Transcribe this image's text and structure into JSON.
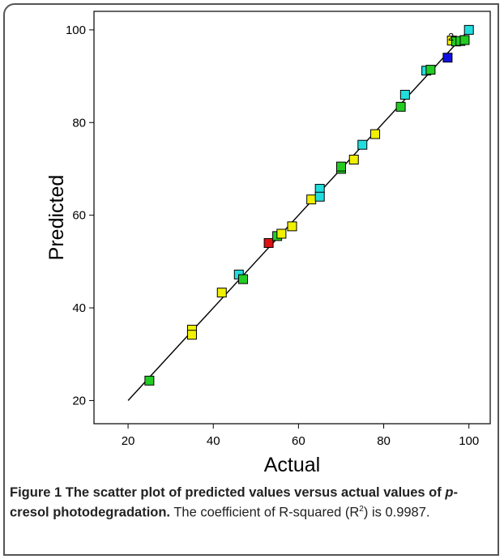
{
  "chart_data": {
    "type": "scatter",
    "xlabel": "Actual",
    "ylabel": "Predicted",
    "xlim": [
      12,
      105
    ],
    "ylim": [
      15,
      104
    ],
    "xticks": [
      20,
      40,
      60,
      80,
      100
    ],
    "yticks": [
      20,
      40,
      60,
      80,
      100
    ],
    "grid": false,
    "fit_line": {
      "x": [
        20,
        100
      ],
      "y": [
        20,
        100
      ]
    },
    "points": [
      {
        "x": 25,
        "y": 24.3,
        "color": "#22cc22"
      },
      {
        "x": 35,
        "y": 35.3,
        "color": "#f0f000"
      },
      {
        "x": 35,
        "y": 34.2,
        "color": "#f0f000"
      },
      {
        "x": 42,
        "y": 43.3,
        "color": "#f0f000"
      },
      {
        "x": 46,
        "y": 47.2,
        "color": "#22dddd"
      },
      {
        "x": 47,
        "y": 46.2,
        "color": "#22cc22"
      },
      {
        "x": 53,
        "y": 54.0,
        "color": "#dd1111"
      },
      {
        "x": 55,
        "y": 55.5,
        "color": "#22cc22"
      },
      {
        "x": 56,
        "y": 56.0,
        "color": "#f0f000"
      },
      {
        "x": 58.5,
        "y": 57.6,
        "color": "#f0f000"
      },
      {
        "x": 63,
        "y": 63.4,
        "color": "#f0f000"
      },
      {
        "x": 65,
        "y": 65.7,
        "color": "#22dddd"
      },
      {
        "x": 65,
        "y": 64.0,
        "color": "#22dddd"
      },
      {
        "x": 70,
        "y": 70.0,
        "color": "#22cc22"
      },
      {
        "x": 70,
        "y": 70.5,
        "color": "#22cc22"
      },
      {
        "x": 73,
        "y": 72.0,
        "color": "#f0f000"
      },
      {
        "x": 75,
        "y": 75.2,
        "color": "#22dddd"
      },
      {
        "x": 78,
        "y": 77.5,
        "color": "#f0f000"
      },
      {
        "x": 84,
        "y": 83.4,
        "color": "#22cc22"
      },
      {
        "x": 85,
        "y": 86.0,
        "color": "#22dddd"
      },
      {
        "x": 90,
        "y": 91.2,
        "color": "#22dddd"
      },
      {
        "x": 91,
        "y": 91.4,
        "color": "#22cc22"
      },
      {
        "x": 95,
        "y": 94.0,
        "color": "#1111dd"
      },
      {
        "x": 96,
        "y": 97.7,
        "color": "#f0f000"
      },
      {
        "x": 97,
        "y": 97.5,
        "color": "#22cc22"
      },
      {
        "x": 98,
        "y": 97.6,
        "color": "#22cc22"
      },
      {
        "x": 99,
        "y": 97.8,
        "color": "#22cc22"
      },
      {
        "x": 100,
        "y": 100.0,
        "color": "#22dddd"
      }
    ],
    "annotation": {
      "x": 95.8,
      "y": 98.6,
      "text": "2"
    }
  },
  "caption": {
    "bold": "Figure 1 The scatter plot of predicted values versus actual values of ",
    "bold_italic": "p",
    "bold_end": "-cresol photodegradation.",
    "rest_1": " The coefficient of R-squared (R",
    "sup": "2",
    "rest_2": ") is 0.9987."
  }
}
